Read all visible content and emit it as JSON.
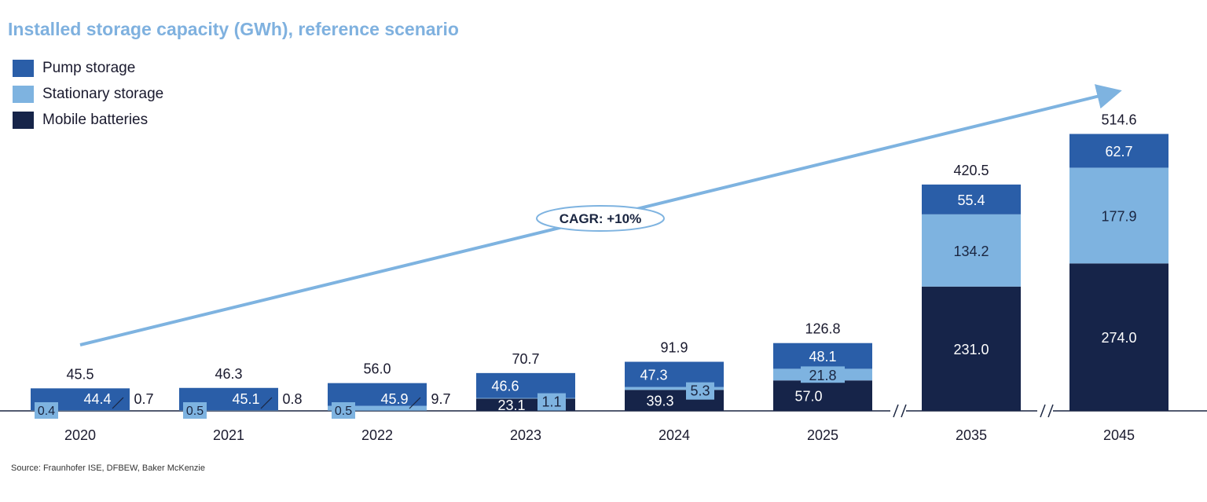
{
  "title": "Installed storage capacity (GWh), reference scenario",
  "source": "Source: Fraunhofer ISE, DFBEW, Baker McKenzie",
  "colors": {
    "pump": "#2a5ea8",
    "stationary": "#7eb3e0",
    "mobile": "#162449",
    "trend": "#7eb3e0"
  },
  "legend": [
    {
      "label": "Pump storage",
      "color_key": "pump"
    },
    {
      "label": "Stationary storage",
      "color_key": "stationary"
    },
    {
      "label": "Mobile batteries",
      "color_key": "mobile"
    }
  ],
  "annotation": {
    "cagr": "CAGR: +10%"
  },
  "chart_data": {
    "type": "bar",
    "stacked": true,
    "categories": [
      "2020",
      "2021",
      "2022",
      "2023",
      "2024",
      "2025",
      "2035",
      "2045"
    ],
    "series": [
      {
        "name": "Mobile batteries",
        "values": [
          0.4,
          0.5,
          0.5,
          23.1,
          39.3,
          57.0,
          231.0,
          274.0
        ]
      },
      {
        "name": "Stationary storage",
        "values": [
          0.7,
          0.8,
          9.7,
          1.1,
          5.3,
          21.8,
          134.2,
          177.9
        ]
      },
      {
        "name": "Pump storage",
        "values": [
          44.4,
          45.1,
          45.9,
          46.6,
          47.3,
          48.1,
          55.4,
          62.7
        ]
      }
    ],
    "totals": [
      "45.5",
      "46.3",
      "56.0",
      "70.7",
      "91.9",
      "126.8",
      "420.5",
      "514.6"
    ],
    "segment_labels": {
      "mobile": [
        "0.4",
        "0.5",
        "0.5",
        "23.1",
        "39.3",
        "57.0",
        "231.0",
        "274.0"
      ],
      "stationary": [
        "0.7",
        "0.8",
        "9.7",
        "1.1",
        "5.3",
        "21.8",
        "134.2",
        "177.9"
      ],
      "pump": [
        "44.4",
        "45.1",
        "45.9",
        "46.6",
        "47.3",
        "48.1",
        "55.4",
        "62.7"
      ]
    },
    "axis_breaks_after": [
      "2025",
      "2035"
    ],
    "legend_position": "top-left",
    "grid": false
  }
}
